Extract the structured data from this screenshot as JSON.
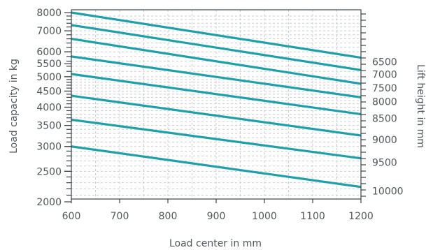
{
  "chart_data": {
    "type": "line",
    "xlabel": "Load center in mm",
    "ylabel": "Load capacity in kg",
    "y2label": "Lift height in mm",
    "x_ticks": [
      "600",
      "700",
      "800",
      "900",
      "1000",
      "1100",
      "1200"
    ],
    "y_ticks": [
      "8000",
      "7000",
      "6000",
      "5500",
      "5000",
      "4500",
      "4000",
      "3500",
      "3000",
      "2500",
      "2000"
    ],
    "right_ticks": [
      "6500",
      "7000",
      "7500",
      "8000",
      "8500",
      "9000",
      "9500",
      "10000"
    ],
    "xlim": [
      600,
      1200
    ],
    "ylim": [
      2000,
      8000
    ],
    "y_scale": "log",
    "grid": true,
    "line_color": "#1f9faa",
    "series": [
      {
        "name": "6500",
        "x": [
          600,
          1200
        ],
        "y": [
          8000,
          5750
        ]
      },
      {
        "name": "7000",
        "x": [
          600,
          1200
        ],
        "y": [
          7300,
          5250
        ]
      },
      {
        "name": "7500",
        "x": [
          600,
          1200
        ],
        "y": [
          6600,
          4750
        ]
      },
      {
        "name": "8000",
        "x": [
          600,
          1200
        ],
        "y": [
          5800,
          4300
        ]
      },
      {
        "name": "8500",
        "x": [
          600,
          1200
        ],
        "y": [
          5100,
          3800
        ]
      },
      {
        "name": "9000",
        "x": [
          600,
          1200
        ],
        "y": [
          4350,
          3250
        ]
      },
      {
        "name": "9500",
        "x": [
          600,
          1200
        ],
        "y": [
          3650,
          2750
        ]
      },
      {
        "name": "10000",
        "x": [
          600,
          1200
        ],
        "y": [
          3000,
          2230
        ]
      }
    ]
  }
}
